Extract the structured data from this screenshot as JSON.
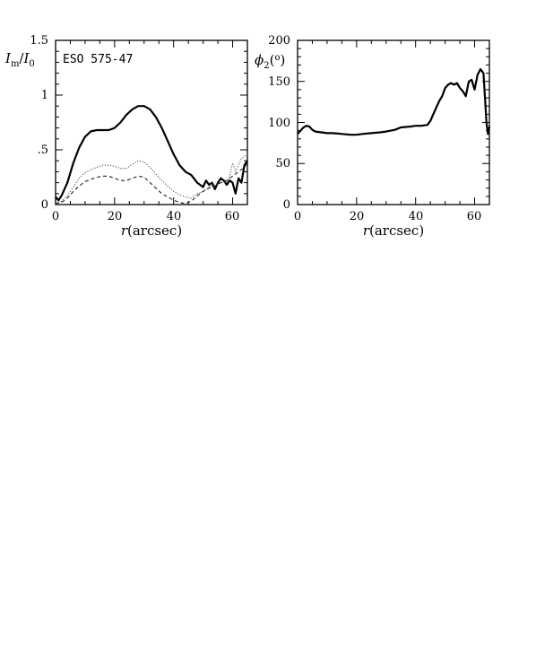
{
  "chart_data": [
    {
      "type": "line",
      "annotation": "ESO 575-47",
      "xlabel_var": "r",
      "xlabel_unit": "(arcsec)",
      "ylabel_html": "I_m/I_0",
      "xlim": [
        0,
        65
      ],
      "ylim": [
        0,
        1.5
      ],
      "x_ticks": [
        0,
        20,
        40,
        60
      ],
      "x_tick_labels": [
        "0",
        "20",
        "40",
        "60"
      ],
      "y_ticks": [
        0,
        0.5,
        1,
        1.5
      ],
      "y_tick_labels": [
        "0",
        ".5",
        "1",
        "1.5"
      ],
      "grid": false,
      "series": [
        {
          "style": "solid-thick",
          "points": [
            [
              0,
              0.07
            ],
            [
              1,
              0.04
            ],
            [
              2,
              0.08
            ],
            [
              4,
              0.2
            ],
            [
              6,
              0.38
            ],
            [
              8,
              0.52
            ],
            [
              10,
              0.62
            ],
            [
              12,
              0.67
            ],
            [
              14,
              0.68
            ],
            [
              16,
              0.68
            ],
            [
              18,
              0.68
            ],
            [
              20,
              0.7
            ],
            [
              22,
              0.75
            ],
            [
              24,
              0.82
            ],
            [
              26,
              0.87
            ],
            [
              28,
              0.9
            ],
            [
              30,
              0.9
            ],
            [
              32,
              0.87
            ],
            [
              34,
              0.8
            ],
            [
              36,
              0.7
            ],
            [
              38,
              0.58
            ],
            [
              40,
              0.46
            ],
            [
              42,
              0.36
            ],
            [
              44,
              0.3
            ],
            [
              46,
              0.27
            ],
            [
              48,
              0.2
            ],
            [
              50,
              0.16
            ],
            [
              51,
              0.22
            ],
            [
              52,
              0.18
            ],
            [
              53,
              0.2
            ],
            [
              54,
              0.14
            ],
            [
              55,
              0.2
            ],
            [
              56,
              0.24
            ],
            [
              57,
              0.22
            ],
            [
              58,
              0.18
            ],
            [
              59,
              0.22
            ],
            [
              60,
              0.2
            ],
            [
              61,
              0.1
            ],
            [
              62,
              0.24
            ],
            [
              63,
              0.2
            ],
            [
              64,
              0.36
            ],
            [
              65,
              0.4
            ]
          ]
        },
        {
          "style": "dotted",
          "points": [
            [
              0,
              0.02
            ],
            [
              2,
              0.03
            ],
            [
              4,
              0.08
            ],
            [
              6,
              0.16
            ],
            [
              8,
              0.24
            ],
            [
              10,
              0.29
            ],
            [
              12,
              0.32
            ],
            [
              14,
              0.34
            ],
            [
              16,
              0.36
            ],
            [
              18,
              0.36
            ],
            [
              20,
              0.35
            ],
            [
              22,
              0.33
            ],
            [
              24,
              0.33
            ],
            [
              26,
              0.37
            ],
            [
              28,
              0.4
            ],
            [
              30,
              0.39
            ],
            [
              32,
              0.34
            ],
            [
              34,
              0.28
            ],
            [
              36,
              0.22
            ],
            [
              38,
              0.17
            ],
            [
              40,
              0.12
            ],
            [
              42,
              0.09
            ],
            [
              44,
              0.07
            ],
            [
              46,
              0.06
            ],
            [
              48,
              0.1
            ],
            [
              50,
              0.12
            ],
            [
              52,
              0.16
            ],
            [
              54,
              0.18
            ],
            [
              56,
              0.2
            ],
            [
              58,
              0.2
            ],
            [
              59,
              0.26
            ],
            [
              60,
              0.38
            ],
            [
              61,
              0.3
            ],
            [
              62,
              0.36
            ],
            [
              63,
              0.42
            ],
            [
              64,
              0.44
            ],
            [
              65,
              0.46
            ]
          ]
        },
        {
          "style": "dashed",
          "points": [
            [
              0,
              0.01
            ],
            [
              2,
              0.02
            ],
            [
              4,
              0.06
            ],
            [
              6,
              0.12
            ],
            [
              8,
              0.17
            ],
            [
              10,
              0.21
            ],
            [
              12,
              0.23
            ],
            [
              14,
              0.25
            ],
            [
              16,
              0.26
            ],
            [
              18,
              0.26
            ],
            [
              20,
              0.24
            ],
            [
              22,
              0.22
            ],
            [
              24,
              0.22
            ],
            [
              26,
              0.24
            ],
            [
              28,
              0.26
            ],
            [
              30,
              0.25
            ],
            [
              32,
              0.2
            ],
            [
              34,
              0.15
            ],
            [
              36,
              0.1
            ],
            [
              38,
              0.07
            ],
            [
              40,
              0.04
            ],
            [
              42,
              0.02
            ],
            [
              44,
              0.01
            ],
            [
              46,
              0.03
            ],
            [
              48,
              0.08
            ],
            [
              50,
              0.12
            ],
            [
              52,
              0.15
            ],
            [
              54,
              0.17
            ],
            [
              56,
              0.2
            ],
            [
              58,
              0.22
            ],
            [
              60,
              0.26
            ],
            [
              62,
              0.3
            ],
            [
              64,
              0.34
            ],
            [
              65,
              0.38
            ]
          ]
        }
      ]
    },
    {
      "type": "line",
      "xlabel_var": "r",
      "xlabel_unit": "(arcsec)",
      "ylabel_html": "phi_2 (o)",
      "xlim": [
        0,
        65
      ],
      "ylim": [
        0,
        200
      ],
      "x_ticks": [
        0,
        20,
        40,
        60
      ],
      "x_tick_labels": [
        "0",
        "20",
        "40",
        "60"
      ],
      "y_ticks": [
        0,
        50,
        100,
        150,
        200
      ],
      "y_tick_labels": [
        "0",
        "50",
        "100",
        "150",
        "200"
      ],
      "grid": false,
      "series": [
        {
          "style": "solid-thick",
          "points": [
            [
              0,
              86
            ],
            [
              1,
              90
            ],
            [
              2,
              94
            ],
            [
              3,
              96
            ],
            [
              4,
              95
            ],
            [
              5,
              91
            ],
            [
              6,
              89
            ],
            [
              8,
              88
            ],
            [
              10,
              87
            ],
            [
              12,
              87
            ],
            [
              15,
              86
            ],
            [
              18,
              85
            ],
            [
              20,
              85
            ],
            [
              22,
              86
            ],
            [
              25,
              87
            ],
            [
              28,
              88
            ],
            [
              30,
              89
            ],
            [
              33,
              91
            ],
            [
              35,
              94
            ],
            [
              38,
              95
            ],
            [
              40,
              96
            ],
            [
              42,
              96
            ],
            [
              44,
              97
            ],
            [
              45,
              102
            ],
            [
              46,
              110
            ],
            [
              47,
              118
            ],
            [
              48,
              126
            ],
            [
              49,
              132
            ],
            [
              50,
              142
            ],
            [
              51,
              146
            ],
            [
              52,
              148
            ],
            [
              53,
              146
            ],
            [
              54,
              148
            ],
            [
              55,
              142
            ],
            [
              56,
              138
            ],
            [
              57,
              132
            ],
            [
              58,
              150
            ],
            [
              59,
              152
            ],
            [
              60,
              140
            ],
            [
              61,
              158
            ],
            [
              62,
              165
            ],
            [
              63,
              160
            ],
            [
              63.5,
              130
            ],
            [
              64,
              100
            ],
            [
              64.5,
              86
            ],
            [
              65,
              95
            ]
          ]
        }
      ]
    }
  ]
}
